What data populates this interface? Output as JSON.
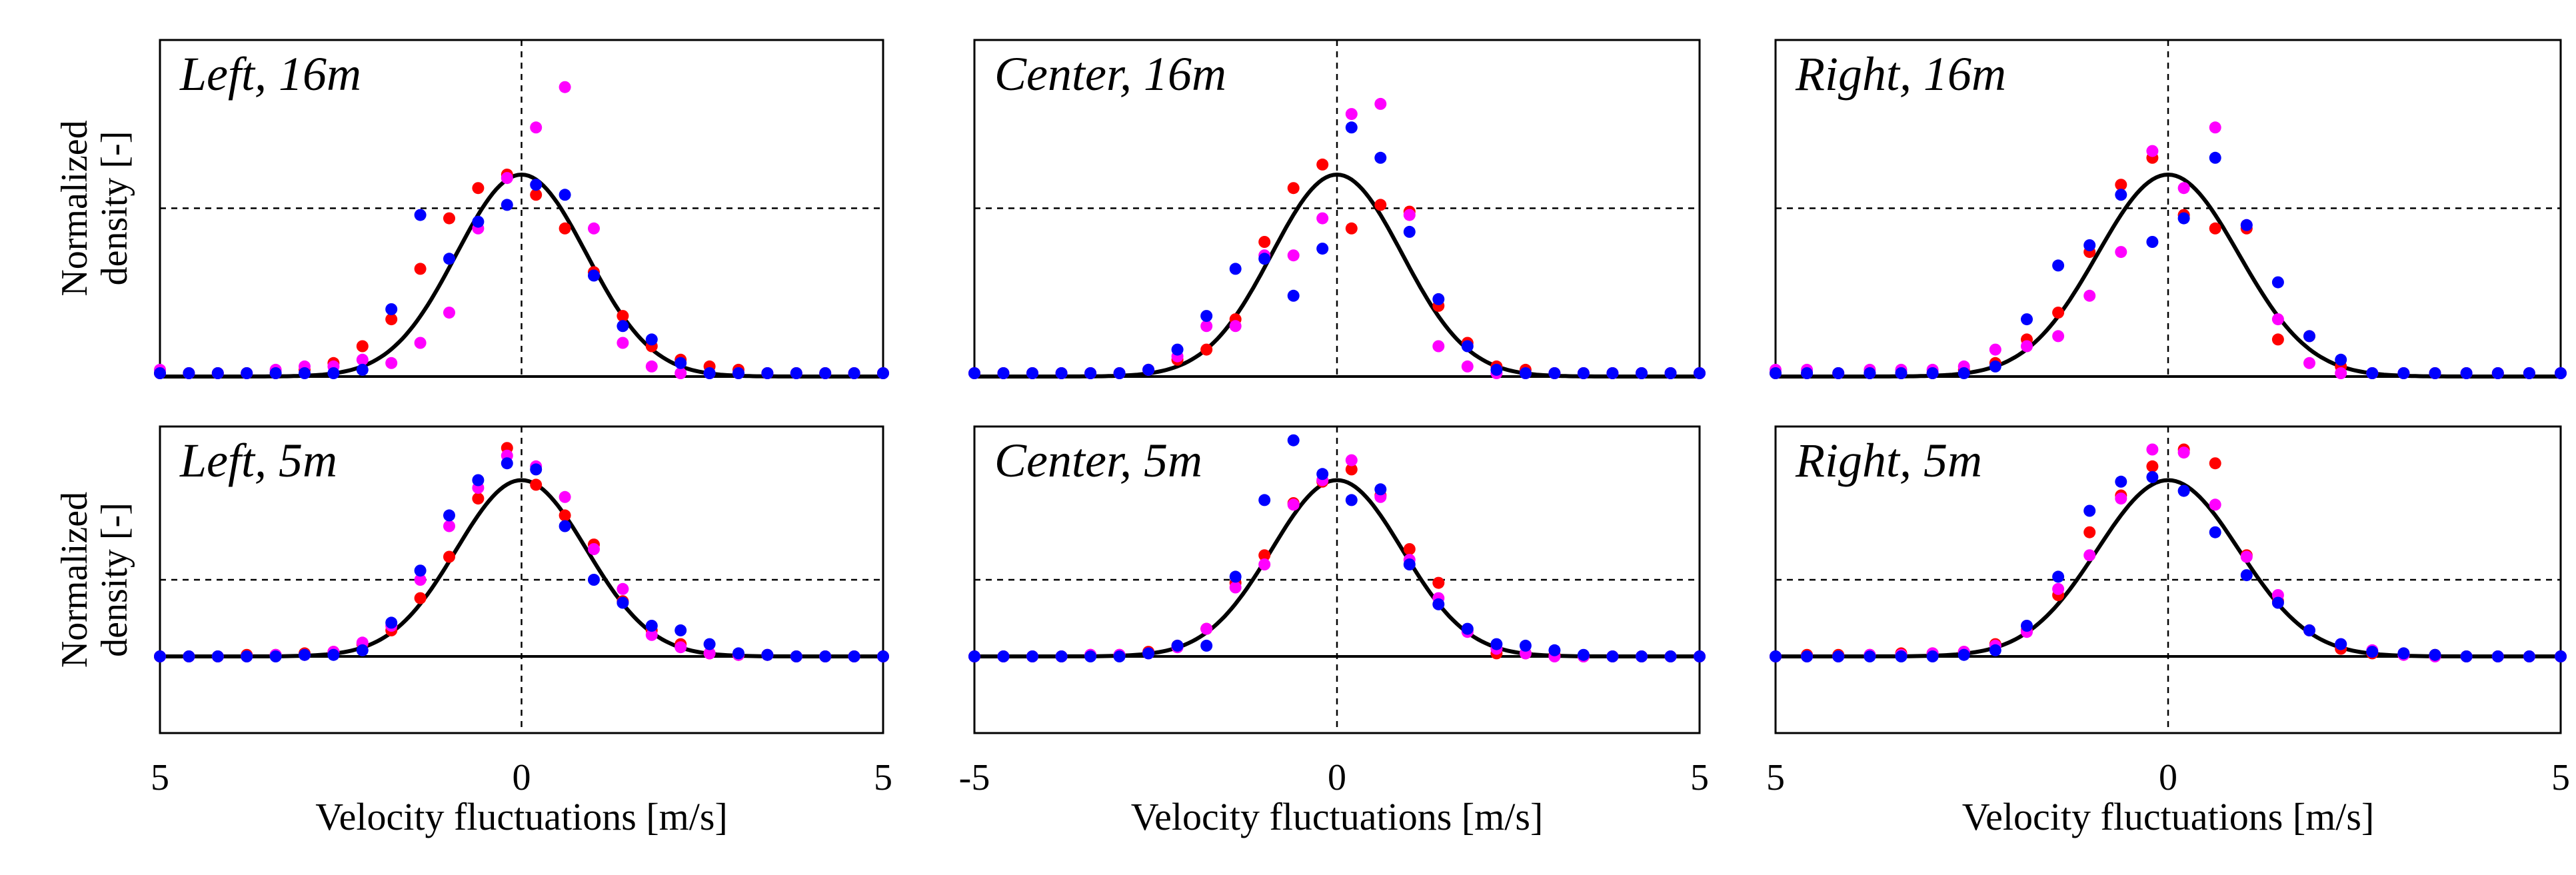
{
  "figure": {
    "ylabel_line1": "Normalized",
    "ylabel_line2": "density [-]",
    "xlabel": "Velocity fluctuations [m/s]",
    "colors": {
      "curve": "#000000",
      "red": "#ff0000",
      "magenta": "#ff00ff",
      "blue": "#0000ff"
    }
  },
  "chart_data": [
    {
      "type": "scatter",
      "title": "Left, 16m",
      "xlabel": "Velocity fluctuations [m/s]",
      "ylabel": "Normalized density [-]",
      "xlim": [
        -5,
        5
      ],
      "ylim": [
        0,
        1
      ],
      "x_tick_labels": [
        "5",
        "0",
        "5"
      ],
      "grid": "dashed lines at x=0 and y=0.5",
      "curve": "gaussian fit, sigma ~0.9 m/s, peak 0.6",
      "x": [
        -5,
        -4.6,
        -4.2,
        -3.8,
        -3.4,
        -3.0,
        -2.6,
        -2.2,
        -1.8,
        -1.4,
        -1.0,
        -0.6,
        -0.2,
        0.2,
        0.6,
        1.0,
        1.4,
        1.8,
        2.2,
        2.6,
        3.0,
        3.4,
        3.8,
        4.2,
        4.6,
        5.0
      ],
      "series": [
        {
          "name": "red",
          "color": "#ff0000",
          "values": [
            0.01,
            0.01,
            0.01,
            0.01,
            0.01,
            0.02,
            0.04,
            0.09,
            0.17,
            0.32,
            0.47,
            0.56,
            0.6,
            0.54,
            0.44,
            0.31,
            0.18,
            0.09,
            0.05,
            0.03,
            0.02,
            0.01,
            0.01,
            0.01,
            0.01,
            0.01
          ]
        },
        {
          "name": "magenta",
          "color": "#ff00ff",
          "values": [
            0.02,
            0.01,
            0.01,
            0.01,
            0.02,
            0.03,
            0.03,
            0.05,
            0.04,
            0.1,
            0.19,
            0.44,
            0.59,
            0.74,
            0.86,
            0.44,
            0.1,
            0.03,
            0.01,
            0.01,
            0.01,
            0.01,
            0.01,
            0.01,
            0.01,
            0.01
          ]
        },
        {
          "name": "blue",
          "color": "#0000ff",
          "values": [
            0.01,
            0.01,
            0.01,
            0.01,
            0.01,
            0.01,
            0.01,
            0.02,
            0.2,
            0.48,
            0.35,
            0.46,
            0.51,
            0.57,
            0.54,
            0.3,
            0.15,
            0.11,
            0.04,
            0.01,
            0.01,
            0.01,
            0.01,
            0.01,
            0.01,
            0.01
          ]
        }
      ]
    },
    {
      "type": "scatter",
      "title": "Center, 16m",
      "xlabel": "Velocity fluctuations [m/s]",
      "ylabel": "Normalized density [-]",
      "xlim": [
        -5,
        5
      ],
      "ylim": [
        0,
        1
      ],
      "x_tick_labels": [
        "-5",
        "0",
        "5"
      ],
      "grid": "dashed lines at x=0 and y=0.5",
      "curve": "gaussian fit, sigma ~0.9 m/s, peak 0.6",
      "x": [
        -5,
        -4.6,
        -4.2,
        -3.8,
        -3.4,
        -3.0,
        -2.6,
        -2.2,
        -1.8,
        -1.4,
        -1.0,
        -0.6,
        -0.2,
        0.2,
        0.6,
        1.0,
        1.4,
        1.8,
        2.2,
        2.6,
        3.0,
        3.4,
        3.8,
        4.2,
        4.6,
        5.0
      ],
      "series": [
        {
          "name": "red",
          "color": "#ff0000",
          "values": [
            0.01,
            0.01,
            0.01,
            0.01,
            0.01,
            0.01,
            0.02,
            0.05,
            0.08,
            0.17,
            0.4,
            0.56,
            0.63,
            0.44,
            0.51,
            0.49,
            0.21,
            0.1,
            0.03,
            0.02,
            0.01,
            0.01,
            0.01,
            0.01,
            0.01,
            0.01
          ]
        },
        {
          "name": "magenta",
          "color": "#ff00ff",
          "values": [
            0.01,
            0.01,
            0.01,
            0.01,
            0.01,
            0.01,
            0.02,
            0.06,
            0.15,
            0.15,
            0.36,
            0.36,
            0.47,
            0.78,
            0.81,
            0.48,
            0.09,
            0.03,
            0.01,
            0.01,
            0.01,
            0.01,
            0.01,
            0.01,
            0.01,
            0.01
          ]
        },
        {
          "name": "blue",
          "color": "#0000ff",
          "values": [
            0.01,
            0.01,
            0.01,
            0.01,
            0.01,
            0.01,
            0.02,
            0.08,
            0.18,
            0.32,
            0.35,
            0.24,
            0.38,
            0.74,
            0.65,
            0.43,
            0.23,
            0.09,
            0.02,
            0.01,
            0.01,
            0.01,
            0.01,
            0.01,
            0.01,
            0.01
          ]
        }
      ]
    },
    {
      "type": "scatter",
      "title": "Right, 16m",
      "xlabel": "Velocity fluctuations [m/s]",
      "ylabel": "Normalized density [-]",
      "xlim": [
        -5,
        5
      ],
      "ylim": [
        0,
        1
      ],
      "x_tick_labels": [
        "5",
        "0",
        "5"
      ],
      "grid": "dashed lines at x=0 and y=0.5",
      "curve": "gaussian fit, sigma ~0.9 m/s, peak 0.6",
      "x": [
        -5,
        -4.6,
        -4.2,
        -3.8,
        -3.4,
        -3.0,
        -2.6,
        -2.2,
        -1.8,
        -1.4,
        -1.0,
        -0.6,
        -0.2,
        0.2,
        0.6,
        1.0,
        1.4,
        1.8,
        2.2,
        2.6,
        3.0,
        3.4,
        3.8,
        4.2,
        4.6,
        5.0
      ],
      "series": [
        {
          "name": "red",
          "color": "#ff0000",
          "values": [
            0.01,
            0.01,
            0.01,
            0.01,
            0.01,
            0.01,
            0.02,
            0.04,
            0.11,
            0.19,
            0.37,
            0.57,
            0.65,
            0.48,
            0.44,
            0.44,
            0.11,
            0.12,
            0.03,
            0.01,
            0.01,
            0.01,
            0.01,
            0.01,
            0.01,
            0.01
          ]
        },
        {
          "name": "magenta",
          "color": "#ff00ff",
          "values": [
            0.02,
            0.02,
            0.01,
            0.02,
            0.02,
            0.02,
            0.03,
            0.08,
            0.09,
            0.12,
            0.24,
            0.37,
            0.67,
            0.56,
            0.74,
            0.45,
            0.17,
            0.04,
            0.01,
            0.01,
            0.01,
            0.01,
            0.01,
            0.01,
            0.01,
            0.01
          ]
        },
        {
          "name": "blue",
          "color": "#0000ff",
          "values": [
            0.01,
            0.01,
            0.01,
            0.01,
            0.01,
            0.01,
            0.01,
            0.03,
            0.17,
            0.33,
            0.39,
            0.54,
            0.4,
            0.47,
            0.65,
            0.45,
            0.28,
            0.12,
            0.05,
            0.01,
            0.01,
            0.01,
            0.01,
            0.01,
            0.01,
            0.01
          ]
        }
      ]
    },
    {
      "type": "scatter",
      "title": "Left, 5m",
      "xlabel": "Velocity fluctuations [m/s]",
      "ylabel": "Normalized density [-]",
      "xlim": [
        -5,
        5
      ],
      "ylim": [
        -0.5,
        1.5
      ],
      "x_tick_labels": [
        "5",
        "0",
        "5"
      ],
      "grid": "dashed lines at x=0, y=0.5 and y=1.5",
      "curve": "gaussian fit, sigma ~0.9 m/s, peak 1.15",
      "x": [
        -5,
        -4.6,
        -4.2,
        -3.8,
        -3.4,
        -3.0,
        -2.6,
        -2.2,
        -1.8,
        -1.4,
        -1.0,
        -0.6,
        -0.2,
        0.2,
        0.6,
        1.0,
        1.4,
        1.8,
        2.2,
        2.6,
        3.0,
        3.4,
        3.8,
        4.2,
        4.6,
        5.0
      ],
      "series": [
        {
          "name": "red",
          "color": "#ff0000",
          "values": [
            0.0,
            0.0,
            0.0,
            0.01,
            0.01,
            0.02,
            0.03,
            0.08,
            0.17,
            0.38,
            0.65,
            1.03,
            1.36,
            1.12,
            0.92,
            0.73,
            0.36,
            0.17,
            0.08,
            0.02,
            0.01,
            0.01,
            0.0,
            0.0,
            0.0,
            0.0
          ]
        },
        {
          "name": "magenta",
          "color": "#ff00ff",
          "values": [
            0.0,
            0.0,
            0.0,
            0.0,
            0.01,
            0.01,
            0.03,
            0.09,
            0.2,
            0.5,
            0.85,
            1.1,
            1.31,
            1.24,
            1.04,
            0.7,
            0.44,
            0.14,
            0.06,
            0.02,
            0.01,
            0.01,
            0.0,
            0.0,
            0.0,
            0.0
          ]
        },
        {
          "name": "blue",
          "color": "#0000ff",
          "values": [
            0.0,
            0.0,
            0.0,
            0.0,
            0.0,
            0.01,
            0.01,
            0.04,
            0.22,
            0.56,
            0.92,
            1.15,
            1.26,
            1.22,
            0.85,
            0.5,
            0.35,
            0.2,
            0.17,
            0.08,
            0.02,
            0.01,
            0.0,
            0.0,
            0.0,
            0.0
          ]
        }
      ]
    },
    {
      "type": "scatter",
      "title": "Center, 5m",
      "xlabel": "Velocity fluctuations [m/s]",
      "ylabel": "Normalized density [-]",
      "xlim": [
        -5,
        5
      ],
      "ylim": [
        -0.5,
        1.5
      ],
      "x_tick_labels": [
        "-5",
        "0",
        "5"
      ],
      "grid": "dashed lines at x=0, y=0.5 and y=1.5",
      "curve": "gaussian fit, sigma ~0.9 m/s, peak 1.15",
      "x": [
        -5,
        -4.6,
        -4.2,
        -3.8,
        -3.4,
        -3.0,
        -2.6,
        -2.2,
        -1.8,
        -1.4,
        -1.0,
        -0.6,
        -0.2,
        0.2,
        0.6,
        1.0,
        1.4,
        1.8,
        2.2,
        2.6,
        3.0,
        3.4,
        3.8,
        4.2,
        4.6,
        5.0
      ],
      "series": [
        {
          "name": "red",
          "color": "#ff0000",
          "values": [
            0.0,
            0.0,
            0.0,
            0.0,
            0.01,
            0.01,
            0.03,
            0.07,
            0.18,
            0.48,
            0.66,
            1.0,
            1.14,
            1.22,
            1.05,
            0.7,
            0.48,
            0.17,
            0.02,
            0.02,
            0.01,
            0.0,
            0.0,
            0.0,
            0.0,
            0.0
          ]
        },
        {
          "name": "magenta",
          "color": "#ff00ff",
          "values": [
            0.0,
            0.0,
            0.0,
            0.0,
            0.01,
            0.01,
            0.02,
            0.06,
            0.18,
            0.45,
            0.6,
            0.99,
            1.15,
            1.28,
            1.04,
            0.63,
            0.38,
            0.16,
            0.05,
            0.02,
            0.0,
            0.0,
            0.0,
            0.0,
            0.0,
            0.0
          ]
        },
        {
          "name": "blue",
          "color": "#0000ff",
          "values": [
            0.0,
            0.0,
            0.0,
            0.0,
            0.0,
            0.0,
            0.02,
            0.07,
            0.07,
            0.52,
            1.02,
            1.41,
            1.19,
            1.02,
            1.09,
            0.6,
            0.34,
            0.18,
            0.08,
            0.07,
            0.04,
            0.01,
            0.0,
            0.0,
            0.0,
            0.0
          ]
        }
      ]
    },
    {
      "type": "scatter",
      "title": "Right, 5m",
      "xlabel": "Velocity fluctuations [m/s]",
      "ylabel": "Normalized density [-]",
      "xlim": [
        -5,
        5
      ],
      "ylim": [
        -0.5,
        1.5
      ],
      "x_tick_labels": [
        "5",
        "0",
        "5"
      ],
      "grid": "dashed lines at x=0, y=0.5 and y=1.5",
      "curve": "gaussian fit, sigma ~0.9 m/s, peak 1.15",
      "x": [
        -5,
        -4.6,
        -4.2,
        -3.8,
        -3.4,
        -3.0,
        -2.6,
        -2.2,
        -1.8,
        -1.4,
        -1.0,
        -0.6,
        -0.2,
        0.2,
        0.6,
        1.0,
        1.4,
        1.8,
        2.2,
        2.6,
        3.0,
        3.4,
        3.8,
        4.2,
        4.6,
        5.0
      ],
      "series": [
        {
          "name": "red",
          "color": "#ff0000",
          "values": [
            0.0,
            0.01,
            0.01,
            0.01,
            0.02,
            0.02,
            0.03,
            0.08,
            0.17,
            0.4,
            0.81,
            1.05,
            1.24,
            1.35,
            1.26,
            0.66,
            0.36,
            0.17,
            0.05,
            0.02,
            0.02,
            0.01,
            0.0,
            0.0,
            0.0,
            0.0
          ]
        },
        {
          "name": "magenta",
          "color": "#ff00ff",
          "values": [
            0.0,
            0.0,
            0.0,
            0.01,
            0.01,
            0.02,
            0.03,
            0.07,
            0.16,
            0.44,
            0.66,
            1.03,
            1.35,
            1.33,
            0.99,
            0.65,
            0.4,
            0.17,
            0.08,
            0.04,
            0.01,
            0.0,
            0.0,
            0.0,
            0.0,
            0.0
          ]
        },
        {
          "name": "blue",
          "color": "#0000ff",
          "values": [
            0.0,
            0.0,
            0.0,
            0.0,
            0.0,
            0.0,
            0.01,
            0.04,
            0.2,
            0.52,
            0.95,
            1.14,
            1.17,
            1.08,
            0.81,
            0.53,
            0.35,
            0.17,
            0.08,
            0.03,
            0.02,
            0.01,
            0.0,
            0.0,
            0.0,
            0.0
          ]
        }
      ]
    }
  ]
}
